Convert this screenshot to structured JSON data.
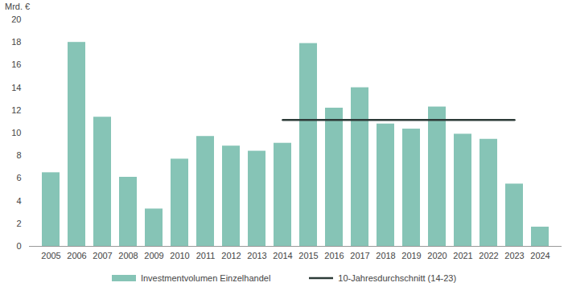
{
  "chart_data": {
    "type": "bar",
    "ylabel": "Mrd. €",
    "categories": [
      "2005",
      "2006",
      "2007",
      "2008",
      "2009",
      "2010",
      "2011",
      "2012",
      "2013",
      "2014",
      "2015",
      "2016",
      "2017",
      "2018",
      "2019",
      "2020",
      "2021",
      "2022",
      "2023",
      "2024"
    ],
    "series": [
      {
        "name": "Investmentvolumen Einzelhandel",
        "type": "bar",
        "color": "#86c4b6",
        "values": [
          6.5,
          18.0,
          11.4,
          6.1,
          3.3,
          7.7,
          9.7,
          8.85,
          8.4,
          9.1,
          17.9,
          12.2,
          14.0,
          10.8,
          10.35,
          12.3,
          9.9,
          9.45,
          5.5,
          1.7
        ]
      },
      {
        "name": "10-Jahresdurchschnitt (14-23)",
        "type": "line",
        "color": "#2d3b38",
        "values": [
          null,
          null,
          null,
          null,
          null,
          null,
          null,
          null,
          null,
          11.15,
          11.15,
          11.15,
          11.15,
          11.15,
          11.15,
          11.15,
          11.15,
          11.15,
          11.15,
          null
        ]
      }
    ],
    "ylim": [
      0,
      20
    ],
    "yticks": [
      0,
      2,
      4,
      6,
      8,
      10,
      12,
      14,
      16,
      18,
      20
    ],
    "grid": false,
    "legend": "bottom"
  }
}
